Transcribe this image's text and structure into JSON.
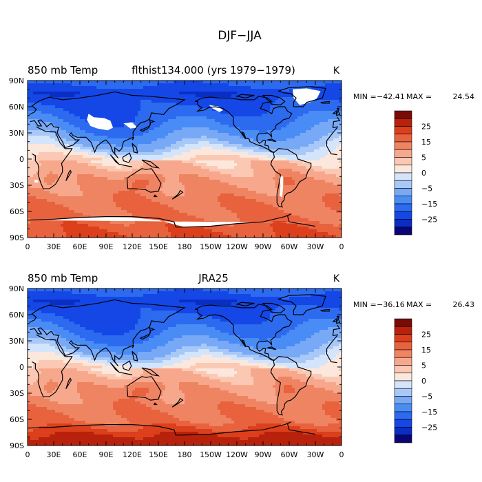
{
  "page_title": "DJF−JJA",
  "colors": {
    "scale": [
      "#0b0575",
      "#0a2ec4",
      "#1447e6",
      "#2c6af0",
      "#4a8cf5",
      "#78a9f6",
      "#a8c8f8",
      "#d3e4fb",
      "#fbe7dc",
      "#fbc9b3",
      "#f7a88c",
      "#ef8463",
      "#e8623e",
      "#db3f1c",
      "#b8210c",
      "#7a0a06"
    ],
    "land_mask": "#ffffff",
    "coast": "#000000"
  },
  "chart_data": [
    {
      "type": "heatmap",
      "title_left": "850 mb Temp",
      "title_center": "flthist134.000 (yrs 1979−1979)",
      "title_right": "K",
      "stats": {
        "min_label": "MIN =",
        "min": "−42.41",
        "max_label": "MAX =",
        "max": "24.54"
      },
      "xticks": [
        "0",
        "30E",
        "60E",
        "90E",
        "120E",
        "150E",
        "180",
        "150W",
        "120W",
        "90W",
        "60W",
        "30W",
        "0"
      ],
      "yticks": [
        "90N",
        "60N",
        "30N",
        "0",
        "30S",
        "60S",
        "90S"
      ],
      "colorbar_labels": [
        "25",
        "15",
        "5",
        "0",
        "−5",
        "−15",
        "−25"
      ],
      "colorbar_levels": [
        -30,
        -25,
        -20,
        -15,
        -10,
        -5,
        -2.5,
        0,
        2.5,
        5,
        10,
        15,
        20,
        25,
        30
      ],
      "range": [
        -42.41,
        24.54
      ],
      "missing_regions": true
    },
    {
      "type": "heatmap",
      "title_left": "850 mb Temp",
      "title_center": "JRA25",
      "title_right": "K",
      "stats": {
        "min_label": "MIN =",
        "min": "−36.16",
        "max_label": "MAX =",
        "max": "26.43"
      },
      "xticks": [
        "0",
        "30E",
        "60E",
        "90E",
        "120E",
        "150E",
        "180",
        "150W",
        "120W",
        "90W",
        "60W",
        "30W",
        "0"
      ],
      "yticks": [
        "90N",
        "60N",
        "30N",
        "0",
        "30S",
        "60S",
        "90S"
      ],
      "colorbar_labels": [
        "25",
        "15",
        "5",
        "0",
        "−5",
        "−15",
        "−25"
      ],
      "colorbar_levels": [
        -30,
        -25,
        -20,
        -15,
        -10,
        -5,
        -2.5,
        0,
        2.5,
        5,
        10,
        15,
        20,
        25,
        30
      ],
      "range": [
        -36.16,
        26.43
      ],
      "missing_regions": false
    }
  ]
}
